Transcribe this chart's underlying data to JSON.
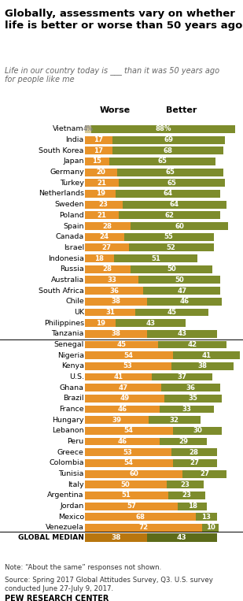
{
  "title": "Globally, assessments vary on whether\nlife is better or worse than 50 years ago",
  "subtitle": "Life in our country today is ___ than it was 50 years ago\nfor people like me",
  "countries": [
    "Vietnam",
    "India",
    "South Korea",
    "Japan",
    "Germany",
    "Turkey",
    "Netherlands",
    "Sweden",
    "Poland",
    "Spain",
    "Canada",
    "Israel",
    "Indonesia",
    "Russia",
    "Australia",
    "South Africa",
    "Chile",
    "UK",
    "Philippines",
    "Tanzania",
    "Senegal",
    "Nigeria",
    "Kenya",
    "U.S.",
    "Ghana",
    "Brazil",
    "France",
    "Hungary",
    "Lebanon",
    "Peru",
    "Greece",
    "Colombia",
    "Tunisia",
    "Italy",
    "Argentina",
    "Jordan",
    "Mexico",
    "Venezuela"
  ],
  "worse": [
    4,
    17,
    17,
    15,
    20,
    21,
    19,
    23,
    21,
    28,
    24,
    27,
    18,
    28,
    33,
    36,
    38,
    31,
    19,
    38,
    45,
    54,
    53,
    41,
    47,
    49,
    46,
    39,
    54,
    46,
    53,
    54,
    60,
    50,
    51,
    57,
    68,
    72
  ],
  "better": [
    88,
    69,
    68,
    65,
    65,
    65,
    64,
    64,
    62,
    60,
    55,
    52,
    51,
    50,
    50,
    47,
    46,
    45,
    43,
    43,
    42,
    41,
    38,
    37,
    36,
    35,
    33,
    32,
    30,
    29,
    28,
    27,
    27,
    23,
    23,
    18,
    13,
    10
  ],
  "divider_after_idx": 19,
  "global_median_worse": 38,
  "global_median_better": 43,
  "worse_color": "#E8932A",
  "better_color": "#7D8C2C",
  "global_median_worse_color": "#B8760F",
  "global_median_better_color": "#5C6B1A",
  "vietnam_worse_color": "#D4C89A",
  "note": "Note: “About the same” responses not shown.",
  "source": "Source: Spring 2017 Global Attitudes Survey, Q3. U.S. survey\nconducted June 27-July 9, 2017.",
  "org": "PEW RESEARCH CENTER",
  "figsize": [
    3.09,
    7.63
  ],
  "dpi": 100
}
